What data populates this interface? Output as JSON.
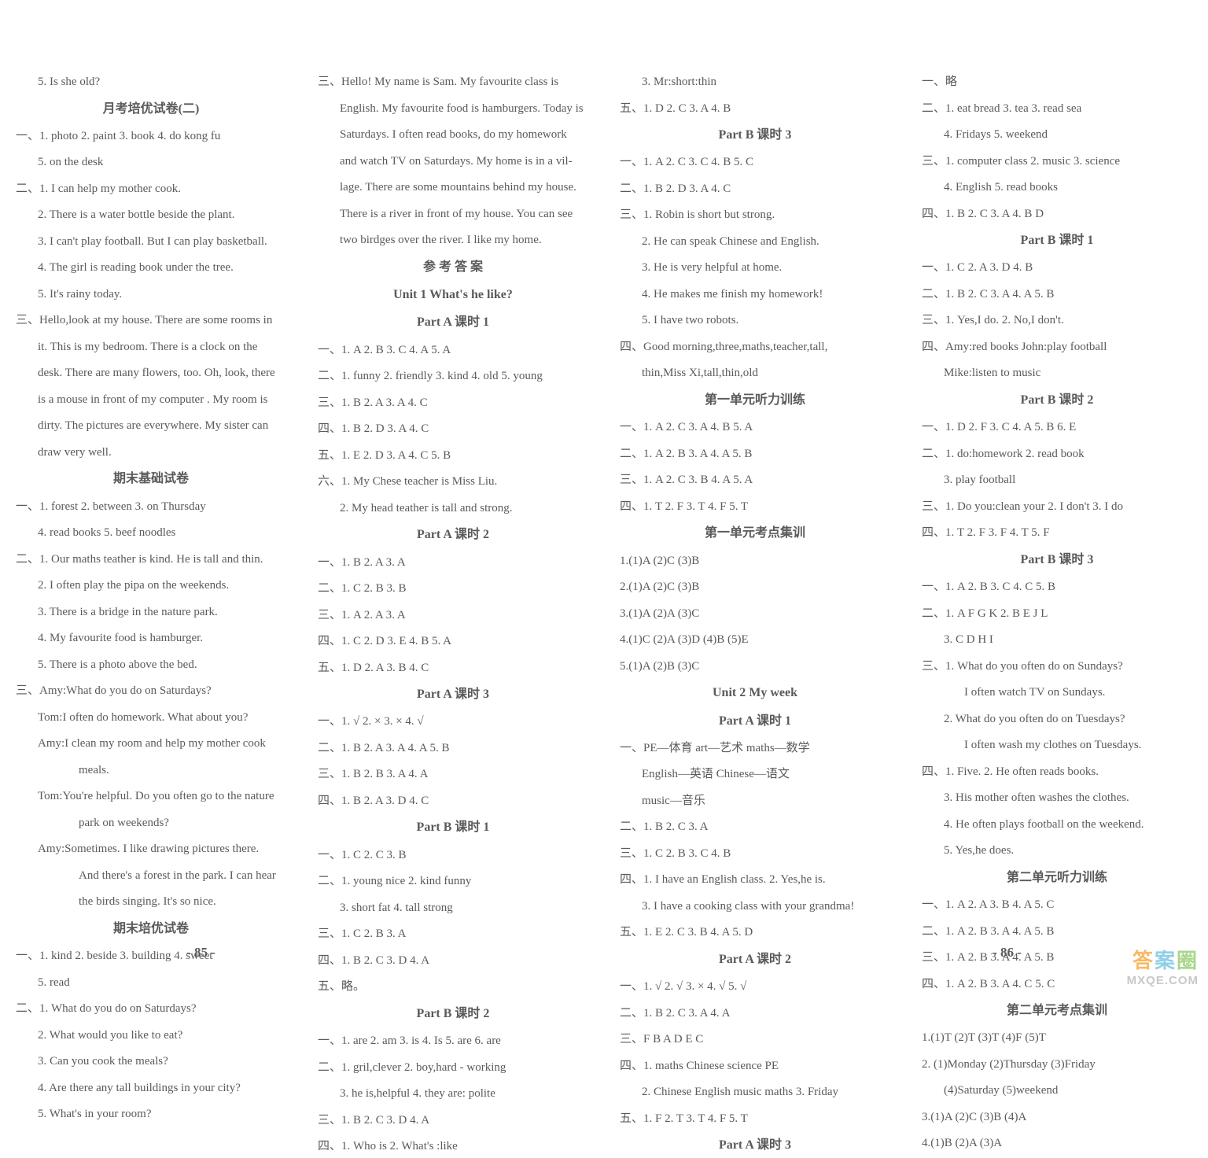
{
  "page_left_number": "- 85 -",
  "page_right_number": "- 86 -",
  "watermark_chars": [
    "答",
    "案",
    "圈"
  ],
  "watermark_url": "MXQE.COM",
  "columns": [
    {
      "lines": [
        {
          "text": "5. Is she old?",
          "indent": 2
        },
        {
          "text": "月考培优试卷(二)",
          "title": true
        },
        {
          "text": "一、1. photo   2. paint   3. book   4. do kong fu",
          "indent": 1
        },
        {
          "text": "5. on the desk",
          "indent": 2
        },
        {
          "text": "二、1. I can help my mother cook.",
          "indent": 1
        },
        {
          "text": "2. There is a water bottle beside the plant.",
          "indent": 2
        },
        {
          "text": "3. I can't play football. But I can play basketball.",
          "indent": 2
        },
        {
          "text": "4. The girl is reading book under the tree.",
          "indent": 2
        },
        {
          "text": "5. It's rainy today.",
          "indent": 2
        },
        {
          "text": "三、Hello,look at my house. There are some rooms in",
          "indent": 1
        },
        {
          "text": "it. This is my bedroom. There is a clock on the",
          "indent": 2
        },
        {
          "text": "desk. There are many flowers, too. Oh, look, there",
          "indent": 2
        },
        {
          "text": "is a mouse in front of my computer . My room is",
          "indent": 2
        },
        {
          "text": "dirty. The pictures are everywhere. My sister can",
          "indent": 2
        },
        {
          "text": "draw very well.",
          "indent": 2
        },
        {
          "text": "期末基础试卷",
          "title": true
        },
        {
          "text": "一、1. forest   2. between   3. on Thursday",
          "indent": 1
        },
        {
          "text": "4. read books   5. beef noodles",
          "indent": 2
        },
        {
          "text": "二、1. Our maths teather is kind. He is tall and thin.",
          "indent": 1
        },
        {
          "text": "2. I often play the pipa on the weekends.",
          "indent": 2
        },
        {
          "text": "3. There is a bridge in the nature park.",
          "indent": 2
        },
        {
          "text": "4. My favourite food is hamburger.",
          "indent": 2
        },
        {
          "text": "5. There is a photo above the bed.",
          "indent": 2
        },
        {
          "text": "三、Amy:What do you do on Saturdays?",
          "indent": 1
        },
        {
          "text": "Tom:I often do homework. What about you?",
          "indent": 2
        },
        {
          "text": "Amy:I clean my room and help my mother cook",
          "indent": 2
        },
        {
          "text": "meals.",
          "indent": 4
        },
        {
          "text": "Tom:You're helpful. Do you often go to the nature",
          "indent": 2
        },
        {
          "text": "park on weekends?",
          "indent": 4
        },
        {
          "text": "Amy:Sometimes. I like drawing pictures there.",
          "indent": 2
        },
        {
          "text": "And there's a forest in the park. I can hear",
          "indent": 4
        },
        {
          "text": "the birds singing. It's so nice.",
          "indent": 4
        },
        {
          "text": "期末培优试卷",
          "title": true
        },
        {
          "text": "一、1. kind   2. beside   3. building   4. sweet",
          "indent": 1
        },
        {
          "text": "5. read",
          "indent": 2
        },
        {
          "text": "二、1. What do you do on Saturdays?",
          "indent": 1
        },
        {
          "text": "2. What would you like to eat?",
          "indent": 2
        },
        {
          "text": "3. Can you cook the meals?",
          "indent": 2
        },
        {
          "text": "4. Are there any tall buildings in your city?",
          "indent": 2
        },
        {
          "text": "5. What's in your room?",
          "indent": 2
        }
      ]
    },
    {
      "lines": [
        {
          "text": "三、Hello! My name is Sam. My favourite class is",
          "indent": 1
        },
        {
          "text": "English. My favourite food is hamburgers. Today is",
          "indent": 2
        },
        {
          "text": "Saturdays. I often read books, do my homework",
          "indent": 2
        },
        {
          "text": "and watch TV on Saturdays. My home is in a vil-",
          "indent": 2
        },
        {
          "text": "lage. There are some mountains behind my house.",
          "indent": 2
        },
        {
          "text": "There is a river in front of my house. You can see",
          "indent": 2
        },
        {
          "text": "two birdges over the river. I like my home.",
          "indent": 2
        },
        {
          "text": "参 考 答 案",
          "title": true
        },
        {
          "text": "Unit 1   What's he like?",
          "title": true
        },
        {
          "text": "Part A   课时 1",
          "title": true
        },
        {
          "text": "一、1. A   2. B   3. C   4. A   5. A",
          "indent": 1
        },
        {
          "text": "二、1. funny   2. friendly   3. kind   4. old   5. young",
          "indent": 1
        },
        {
          "text": "三、1. B   2. A   3. A   4. C",
          "indent": 1
        },
        {
          "text": "四、1. B   2. D   3. A   4. C",
          "indent": 1
        },
        {
          "text": "五、1. E   2. D   3. A   4. C   5. B",
          "indent": 1
        },
        {
          "text": "六、1. My Chese teacher is Miss Liu.",
          "indent": 1
        },
        {
          "text": "2. My head teather is tall and strong.",
          "indent": 2
        },
        {
          "text": "Part A   课时 2",
          "title": true
        },
        {
          "text": "一、1. B   2. A   3. A",
          "indent": 1
        },
        {
          "text": "二、1. C   2. B   3. B",
          "indent": 1
        },
        {
          "text": "三、1. A   2. A   3. A",
          "indent": 1
        },
        {
          "text": "四、1. C   2. D   3. E   4. B   5. A",
          "indent": 1
        },
        {
          "text": "五、1. D   2. A   3. B   4. C",
          "indent": 1
        },
        {
          "text": "Part A   课时 3",
          "title": true
        },
        {
          "text": "一、1. √   2. ×   3. ×   4. √",
          "indent": 1
        },
        {
          "text": "二、1. B   2. A   3. A   4. A   5. B",
          "indent": 1
        },
        {
          "text": "三、1. B   2. B   3. A   4. A",
          "indent": 1
        },
        {
          "text": "四、1. B   2. A   3. D   4. C",
          "indent": 1
        },
        {
          "text": "Part B   课时 1",
          "title": true
        },
        {
          "text": "一、1. C   2. C   3. B",
          "indent": 1
        },
        {
          "text": "二、1. young   nice   2. kind   funny",
          "indent": 1
        },
        {
          "text": "3. short   fat   4. tall   strong",
          "indent": 2
        },
        {
          "text": "三、1. C   2. B   3. A",
          "indent": 1
        },
        {
          "text": "四、1. B   2. C   3. D   4. A",
          "indent": 1
        },
        {
          "text": "五、略。",
          "indent": 1
        },
        {
          "text": "Part B   课时 2",
          "title": true
        },
        {
          "text": "一、1. are   2. am   3. is   4. Is   5. are   6. are",
          "indent": 1
        },
        {
          "text": "二、1. gril,clever   2. boy,hard - working",
          "indent": 1
        },
        {
          "text": "3. he is,helpful   4. they are: polite",
          "indent": 2
        },
        {
          "text": "三、1. B   2. C   3. D   4. A",
          "indent": 1
        },
        {
          "text": "四、1. Who is   2. What's :like",
          "indent": 1
        }
      ]
    },
    {
      "lines": [
        {
          "text": "3. Mr:short:thin",
          "indent": 2
        },
        {
          "text": "五、1. D   2. C   3. A   4. B",
          "indent": 1
        },
        {
          "text": "Part B   课时 3",
          "title": true
        },
        {
          "text": "一、1. A   2. C   3. C   4. B   5. C",
          "indent": 1
        },
        {
          "text": "二、1. B   2. D   3. A   4. C",
          "indent": 1
        },
        {
          "text": "三、1. Robin is short but strong.",
          "indent": 1
        },
        {
          "text": "2. He can speak Chinese and English.",
          "indent": 2
        },
        {
          "text": "3. He is very helpful at home.",
          "indent": 2
        },
        {
          "text": "4. He makes me finish my homework!",
          "indent": 2
        },
        {
          "text": "5. I have two robots.",
          "indent": 2
        },
        {
          "text": "四、Good morning,three,maths,teacher,tall,",
          "indent": 1
        },
        {
          "text": "thin,Miss Xi,tall,thin,old",
          "indent": 2
        },
        {
          "text": "第一单元听力训练",
          "title": true
        },
        {
          "text": "一、1. A   2. C   3. A   4. B   5. A",
          "indent": 1
        },
        {
          "text": "二、1. A   2. B   3. A   4. A   5. B",
          "indent": 1
        },
        {
          "text": "三、1. A   2. C   3. B   4. A   5. A",
          "indent": 1
        },
        {
          "text": "四、1. T   2. F   3. T   4. F   5. T",
          "indent": 1
        },
        {
          "text": "第一单元考点集训",
          "title": true
        },
        {
          "text": "1.(1)A   (2)C   (3)B",
          "indent": 1
        },
        {
          "text": "2.(1)A   (2)C   (3)B",
          "indent": 1
        },
        {
          "text": "3.(1)A   (2)A   (3)C",
          "indent": 1
        },
        {
          "text": "4.(1)C   (2)A   (3)D   (4)B   (5)E",
          "indent": 1
        },
        {
          "text": "5.(1)A   (2)B   (3)C",
          "indent": 1
        },
        {
          "text": "Unit 2   My week",
          "title": true
        },
        {
          "text": "Part A   课时 1",
          "title": true
        },
        {
          "text": "一、PE—体育   art—艺术   maths—数学",
          "indent": 1
        },
        {
          "text": "English—英语   Chinese—语文",
          "indent": 2
        },
        {
          "text": "music—音乐",
          "indent": 2
        },
        {
          "text": "二、1. B   2. C   3. A",
          "indent": 1
        },
        {
          "text": "三、1. C   2. B   3. C   4. B",
          "indent": 1
        },
        {
          "text": "四、1. I have an English class.   2. Yes,he is.",
          "indent": 1
        },
        {
          "text": "3. I have a cooking class with your grandma!",
          "indent": 2
        },
        {
          "text": "五、1. E   2. C   3. B   4. A   5. D",
          "indent": 1
        },
        {
          "text": "Part A   课时 2",
          "title": true
        },
        {
          "text": "一、1. √   2. √   3. ×   4. √   5. √",
          "indent": 1
        },
        {
          "text": "二、1. B   2. C   3. A   4. A",
          "indent": 1
        },
        {
          "text": "三、F   B   A   D   E   C",
          "indent": 1
        },
        {
          "text": "四、1. maths   Chinese   science   PE",
          "indent": 1
        },
        {
          "text": "2. Chinese   English   music   maths   3. Friday",
          "indent": 2
        },
        {
          "text": "五、1. F   2. T   3. T   4. F   5. T",
          "indent": 1
        },
        {
          "text": "Part A   课时 3",
          "title": true
        }
      ]
    },
    {
      "lines": [
        {
          "text": "一、略",
          "indent": 1
        },
        {
          "text": "二、1. eat   bread   3. tea   3. read   sea",
          "indent": 1
        },
        {
          "text": "4. Fridays   5. weekend",
          "indent": 2
        },
        {
          "text": "三、1. computer   class   2. music   3. science",
          "indent": 1
        },
        {
          "text": "4. English   5. read books",
          "indent": 2
        },
        {
          "text": "四、1. B   2. C   3. A   4. B   D",
          "indent": 1
        },
        {
          "text": "Part B   课时 1",
          "title": true
        },
        {
          "text": "一、1. C   2. A   3. D   4. B",
          "indent": 1
        },
        {
          "text": "二、1. B   2. C   3. A   4. A   5. B",
          "indent": 1
        },
        {
          "text": "三、1. Yes,I do.   2. No,I don't.",
          "indent": 1
        },
        {
          "text": "四、Amy:red books   John:play football",
          "indent": 1
        },
        {
          "text": "Mike:listen to music",
          "indent": 2
        },
        {
          "text": "Part B   课时 2",
          "title": true
        },
        {
          "text": "一、1. D   2. F   3. C   4. A   5. B   6. E",
          "indent": 1
        },
        {
          "text": "二、1. do:homework   2. read book",
          "indent": 1
        },
        {
          "text": "3. play football",
          "indent": 2
        },
        {
          "text": "三、1. Do you:clean your   2. I don't   3. I do",
          "indent": 1
        },
        {
          "text": "四、1. T   2. F   3. F   4. T   5. F",
          "indent": 1
        },
        {
          "text": "Part B   课时 3",
          "title": true
        },
        {
          "text": "一、1. A   2. B   3. C   4. C   5. B",
          "indent": 1
        },
        {
          "text": "二、1. A   F   G   K   2. B   E   J   L",
          "indent": 1
        },
        {
          "text": "3. C   D   H   I",
          "indent": 2
        },
        {
          "text": "三、1. What do you often do on Sundays?",
          "indent": 1
        },
        {
          "text": "I often watch TV on Sundays.",
          "indent": 3
        },
        {
          "text": "2. What do you often do on Tuesdays?",
          "indent": 2
        },
        {
          "text": "I often wash my clothes on Tuesdays.",
          "indent": 3
        },
        {
          "text": "四、1. Five.   2. He often reads books.",
          "indent": 1
        },
        {
          "text": "3. His mother often washes the clothes.",
          "indent": 2
        },
        {
          "text": "4. He often plays football on the weekend.",
          "indent": 2
        },
        {
          "text": "5. Yes,he does.",
          "indent": 2
        },
        {
          "text": "第二单元听力训练",
          "title": true
        },
        {
          "text": "一、1. A   2. A   3. B   4. A   5. C",
          "indent": 1
        },
        {
          "text": "二、1. A   2. B   3. A   4. A   5. B",
          "indent": 1
        },
        {
          "text": "三、1. A   2. B   3. A   4. A   5. B",
          "indent": 1
        },
        {
          "text": "四、1. A   2. B   3. A   4. C   5. C",
          "indent": 1
        },
        {
          "text": "第二单元考点集训",
          "title": true
        },
        {
          "text": "1.(1)T   (2)T   (3)T   (4)F   (5)T",
          "indent": 1
        },
        {
          "text": "2. (1)Monday   (2)Thursday   (3)Friday",
          "indent": 1
        },
        {
          "text": "(4)Saturday   (5)weekend",
          "indent": 2
        },
        {
          "text": "3.(1)A   (2)C   (3)B   (4)A",
          "indent": 1
        },
        {
          "text": "4.(1)B   (2)A   (3)A",
          "indent": 1
        }
      ]
    }
  ]
}
